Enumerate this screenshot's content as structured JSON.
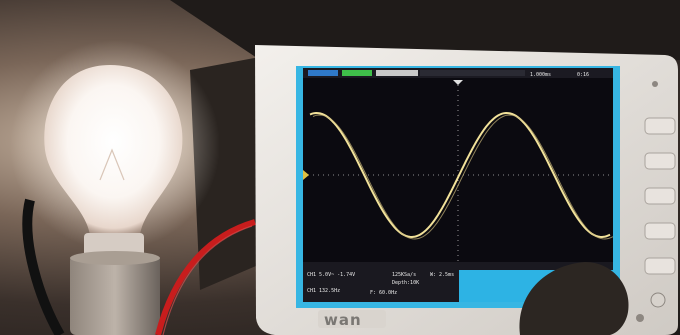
{
  "scene": {
    "description_hidden": false
  },
  "oscilloscope": {
    "brand": "wan",
    "top_bar": {
      "left_field": "",
      "right_fields": [
        "1.000ms",
        "0:16"
      ]
    },
    "bottom_readouts": {
      "ch1_line1": "CH1 5.0V~  -1.74V",
      "ch1_line2": "CH1 132.5Hz",
      "timebase": "125KSa/s",
      "depth": "Depth:10K",
      "window": "W: 2.5ms",
      "ch2_line": "F: 60.0Hz"
    },
    "trace_color": "#f2e29a",
    "screen_color": "#0b0a10",
    "bezel_color": "#37b6e3"
  }
}
